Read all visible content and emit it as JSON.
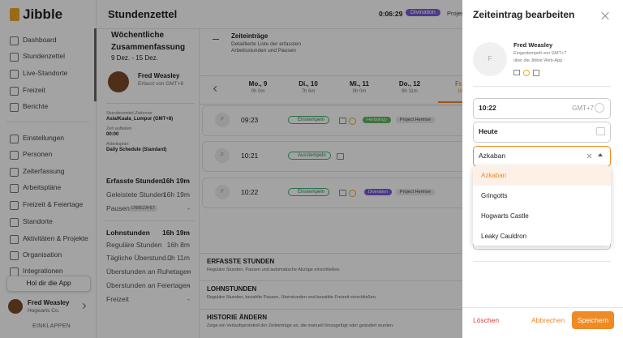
{
  "sidebar": {
    "logo": "Jibble",
    "menu": [
      "Dashboard",
      "Stundenzettel",
      "Live-Standorte",
      "Freizeit",
      "Berichte",
      "Einstellungen",
      "Personen",
      "Zeiterfassung",
      "Arbeitspläne",
      "Freizeit & Feiertage",
      "Standorte",
      "Aktivitäten & Projekte",
      "Organisation",
      "Integrationen"
    ],
    "app": "Hol dir die App",
    "user": {
      "name": "Fred Weasley",
      "org": "Hogwarts Co."
    },
    "collapse": "EINKLAPPEN"
  },
  "header": {
    "title": "Stundenzettel",
    "timer": "0:06:29",
    "activity": "Divination",
    "project": "Projec"
  },
  "summary": {
    "title": "Wöchentliche Zusammenfassung",
    "range": "9 Dez. - 15 Dez.",
    "name": "Fred Weasley",
    "tracked": "Erfasst von GMT+8",
    "fields": [
      {
        "label": "Stundenzettel-Zeitzone",
        "value": "Asia/Kuala_Lumpur (GMT+8)"
      },
      {
        "label": "Zeit aufteilen",
        "value": "00:00"
      },
      {
        "label": "Arbeitsplan",
        "value": "Daily Schedule (Standard)"
      }
    ],
    "rows": [
      {
        "label": "Erfasste Stunden",
        "value": "16h 19m"
      },
      {
        "label": "Geleistete Stunden",
        "value": "16h 19m"
      },
      {
        "label": "Pausen",
        "badge": "UNBEZAHLT",
        "value": "-"
      },
      {
        "label": "Lohnstunden",
        "value": "16h 19m"
      },
      {
        "label": "Reguläre Stunden",
        "value": "16h 8m"
      },
      {
        "label": "Tägliche Überstund...",
        "value": "0h 11m"
      },
      {
        "label": "Überstunden an Ruhetagen",
        "value": "-"
      },
      {
        "label": "Überstunden an Feiertagen",
        "value": "-"
      },
      {
        "label": "Freizeit",
        "value": "-"
      }
    ]
  },
  "entries": {
    "title": "Zeiteinträge",
    "description": "Detaillierte Liste der erfassten Arbeitsstunden und Pausen",
    "days": [
      {
        "day": "Mo., 9",
        "total": "0h 0m"
      },
      {
        "day": "Di., 10",
        "total": "7h 6m"
      },
      {
        "day": "Mi., 11",
        "total": "0h 0m"
      },
      {
        "day": "Do., 12",
        "total": "8h 11m"
      },
      {
        "day": "Fr.,",
        "total": "1h"
      }
    ],
    "avatar": "F",
    "items": [
      {
        "time": "09:23",
        "action": "Einstempeln",
        "activity": "Herbology",
        "project": "Project Hermse"
      },
      {
        "time": "10:21",
        "action": "Ausstempeln"
      },
      {
        "time": "10:22",
        "action": "Einstempeln",
        "activity": "Divination",
        "project": "Project Hermse"
      }
    ],
    "sections": [
      {
        "title": "ERFASSTE STUNDEN",
        "text": "Reguläre Stunden, Pausen und automatische Abzüge einschließen."
      },
      {
        "title": "LOHNSTUNDEN",
        "text": "Reguläre Stunden, bezahlte Pausen, Überstunden und bezahlte Freizeit einschließen."
      },
      {
        "title": "HISTORIE ÄNDERN",
        "text": "Zeige ein Verlaufsprotokoll der Zeiteinträge an, die manuell hinzugefügt oder geändert wurden."
      }
    ]
  },
  "panel": {
    "title": "Zeiteintrag bearbeiten",
    "avatar": "F",
    "name": "Fred Weasley",
    "clocked": "Eingestempelt von GMT+7",
    "via": "über die Jibble Web-App",
    "time": "10:22",
    "timezone": "GMT+7",
    "date": "Heute",
    "location": "Azkaban",
    "options": [
      "Azkaban",
      "Gringotts",
      "Hogwarts Castle",
      "Leaky Cauldron"
    ],
    "delete": "Löschen",
    "cancel": "Abbrechen",
    "save": "Speichern"
  }
}
